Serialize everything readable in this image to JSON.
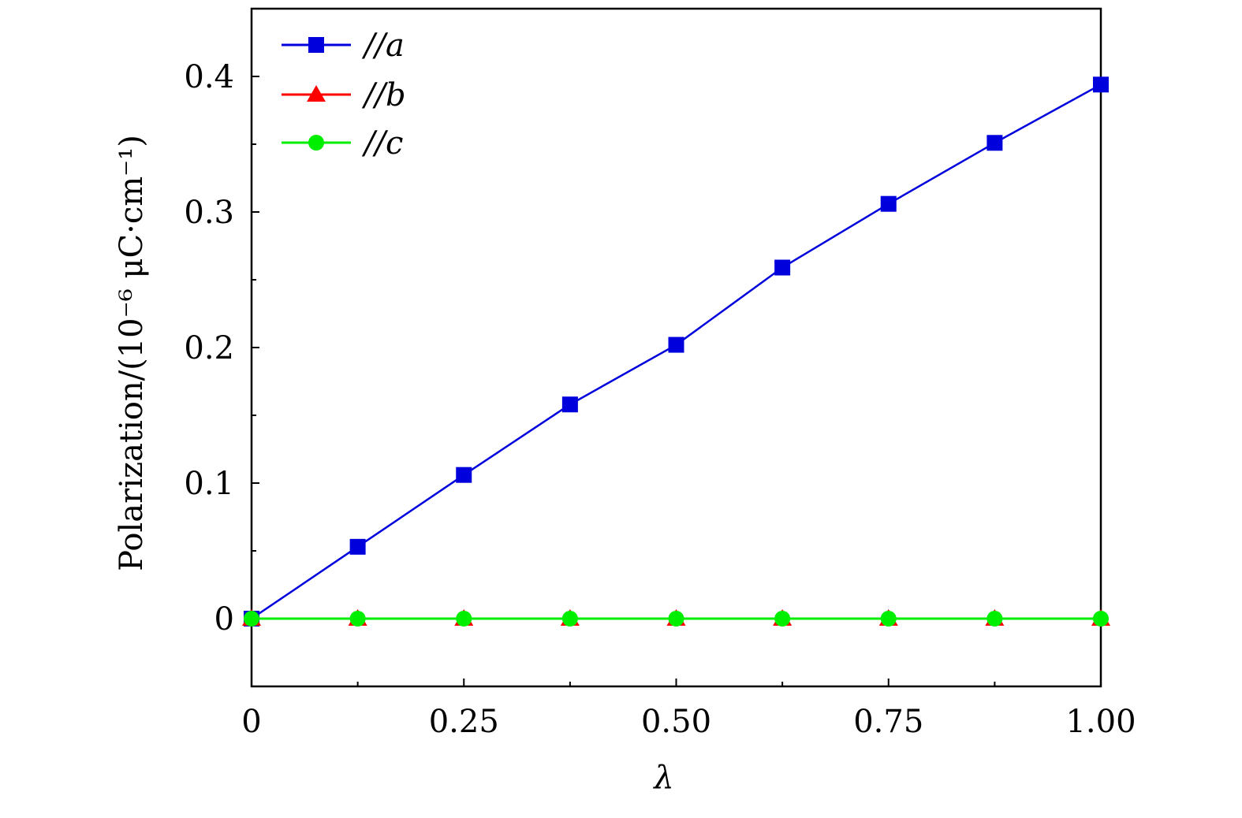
{
  "chart_data": {
    "type": "line",
    "xlabel": "λ",
    "ylabel": "Polarization/(10⁻⁶ μC·cm⁻¹)",
    "xlim": [
      0,
      1.0
    ],
    "ylim": [
      -0.05,
      0.45
    ],
    "xticks": [
      0,
      0.25,
      0.5,
      0.75,
      1.0
    ],
    "xtick_labels": [
      "0",
      "0.25",
      "0.50",
      "0.75",
      "1.00"
    ],
    "yticks": [
      0,
      0.1,
      0.2,
      0.3,
      0.4
    ],
    "ytick_labels": [
      "0",
      "0.1",
      "0.2",
      "0.3",
      "0.4"
    ],
    "x": [
      0,
      0.125,
      0.25,
      0.375,
      0.5,
      0.625,
      0.75,
      0.875,
      1.0
    ],
    "series": [
      {
        "name": "//a",
        "marker": "square",
        "color": "#0000dd",
        "values": [
          0.0,
          0.053,
          0.106,
          0.158,
          0.202,
          0.259,
          0.306,
          0.351,
          0.394
        ]
      },
      {
        "name": "//b",
        "marker": "triangle",
        "color": "#ff0000",
        "values": [
          0,
          0,
          0,
          0,
          0,
          0,
          0,
          0,
          0
        ]
      },
      {
        "name": "//c",
        "marker": "circle",
        "color": "#00ee00",
        "values": [
          0,
          0,
          0,
          0,
          0,
          0,
          0,
          0,
          0
        ]
      }
    ],
    "legend_position": "top-left",
    "grid": false
  }
}
